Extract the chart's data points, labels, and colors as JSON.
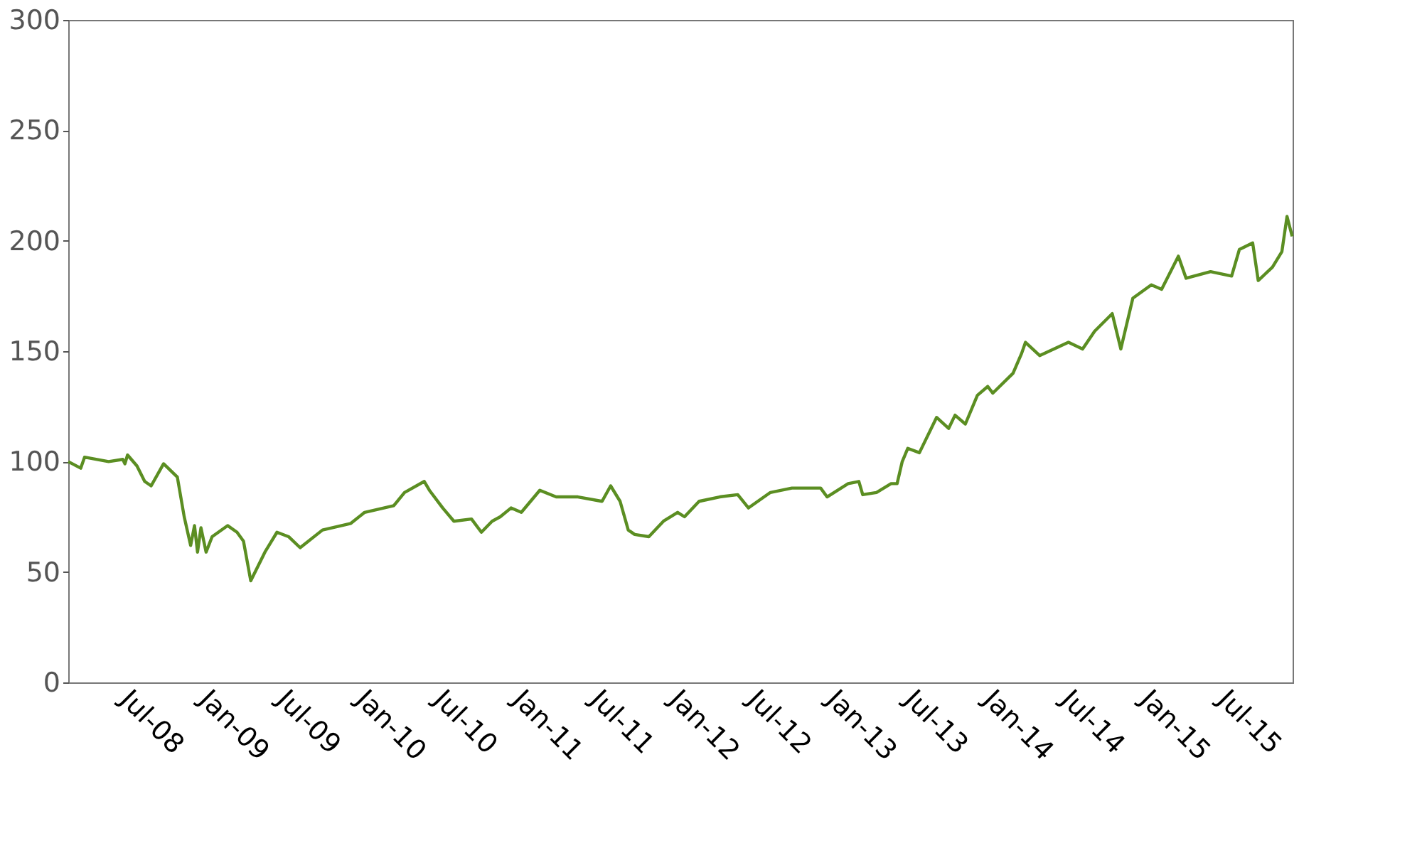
{
  "chart_data": {
    "type": "line",
    "color": "#5b8e22",
    "grid": false,
    "line_style": "solid",
    "marker": "none",
    "x": [
      "2008-02-01",
      "2008-03-01",
      "2008-03-10",
      "2008-05-05",
      "2008-06-07",
      "2008-06-12",
      "2008-06-18",
      "2008-07-10",
      "2008-07-28",
      "2008-08-12",
      "2008-09-10",
      "2008-10-12",
      "2008-10-28",
      "2008-11-12",
      "2008-11-21",
      "2008-11-28",
      "2008-12-06",
      "2008-12-18",
      "2009-01-01",
      "2009-02-06",
      "2009-02-28",
      "2009-03-15",
      "2009-04-01",
      "2009-05-04",
      "2009-06-01",
      "2009-06-28",
      "2009-07-25",
      "2009-09-15",
      "2009-11-20",
      "2009-12-22",
      "2010-02-28",
      "2010-03-25",
      "2010-05-10",
      "2010-05-22",
      "2010-06-22",
      "2010-07-18",
      "2010-08-28",
      "2010-09-20",
      "2010-10-15",
      "2010-11-03",
      "2010-11-28",
      "2010-12-22",
      "2011-02-03",
      "2011-03-13",
      "2011-05-03",
      "2011-06-28",
      "2011-07-18",
      "2011-08-09",
      "2011-08-28",
      "2011-09-12",
      "2011-10-15",
      "2011-11-18",
      "2011-12-21",
      "2012-01-06",
      "2012-02-09",
      "2012-03-28",
      "2012-05-09",
      "2012-06-03",
      "2012-07-24",
      "2012-09-12",
      "2012-11-18",
      "2012-12-03",
      "2013-01-21",
      "2013-02-15",
      "2013-02-24",
      "2013-03-28",
      "2013-05-01",
      "2013-05-15",
      "2013-05-27",
      "2013-06-09",
      "2013-07-06",
      "2013-08-15",
      "2013-09-12",
      "2013-09-27",
      "2013-10-21",
      "2013-11-18",
      "2013-12-12",
      "2013-12-24",
      "2014-02-09",
      "2014-03-01",
      "2014-03-10",
      "2014-04-12",
      "2014-06-18",
      "2014-07-21",
      "2014-08-18",
      "2014-09-28",
      "2014-10-18",
      "2014-11-15",
      "2014-12-28",
      "2015-01-21",
      "2015-03-01",
      "2015-03-19",
      "2015-05-15",
      "2015-07-03",
      "2015-07-21",
      "2015-08-21",
      "2015-09-03",
      "2015-10-06",
      "2015-10-28",
      "2015-11-09",
      "2015-11-21"
    ],
    "values": [
      100,
      97,
      102,
      100,
      101,
      99,
      103,
      98,
      91,
      89,
      99,
      93,
      75,
      62,
      71,
      59,
      70,
      59,
      66,
      71,
      68,
      64,
      46,
      59,
      68,
      66,
      61,
      69,
      72,
      77,
      80,
      86,
      91,
      87,
      79,
      73,
      74,
      68,
      73,
      75,
      79,
      77,
      87,
      84,
      84,
      82,
      89,
      82,
      69,
      67,
      66,
      73,
      77,
      75,
      82,
      84,
      85,
      79,
      86,
      88,
      88,
      84,
      90,
      91,
      85,
      86,
      90,
      90,
      100,
      106,
      104,
      120,
      115,
      121,
      117,
      130,
      134,
      131,
      140,
      149,
      154,
      148,
      154,
      151,
      159,
      167,
      151,
      174,
      180,
      178,
      193,
      183,
      186,
      184,
      196,
      199,
      182,
      188,
      195,
      211,
      202
    ],
    "xlim": [
      "2008-02-01",
      "2015-11-22"
    ],
    "xticks": [
      {
        "value": "2008-07-01",
        "label": "Jul-08"
      },
      {
        "value": "2009-01-01",
        "label": "Jan-09"
      },
      {
        "value": "2009-07-01",
        "label": "Jul-09"
      },
      {
        "value": "2010-01-01",
        "label": "Jan-10"
      },
      {
        "value": "2010-07-01",
        "label": "Jul-10"
      },
      {
        "value": "2011-01-01",
        "label": "Jan-11"
      },
      {
        "value": "2011-07-01",
        "label": "Jul-11"
      },
      {
        "value": "2012-01-01",
        "label": "Jan-12"
      },
      {
        "value": "2012-07-01",
        "label": "Jul-12"
      },
      {
        "value": "2013-01-01",
        "label": "Jan-13"
      },
      {
        "value": "2013-07-01",
        "label": "Jul-13"
      },
      {
        "value": "2014-01-01",
        "label": "Jan-14"
      },
      {
        "value": "2014-07-01",
        "label": "Jul-14"
      },
      {
        "value": "2015-01-01",
        "label": "Jan-15"
      },
      {
        "value": "2015-07-01",
        "label": "Jul-15"
      }
    ],
    "ylim": [
      0,
      300
    ],
    "yticks": [
      0,
      50,
      100,
      150,
      200,
      250,
      300
    ]
  }
}
